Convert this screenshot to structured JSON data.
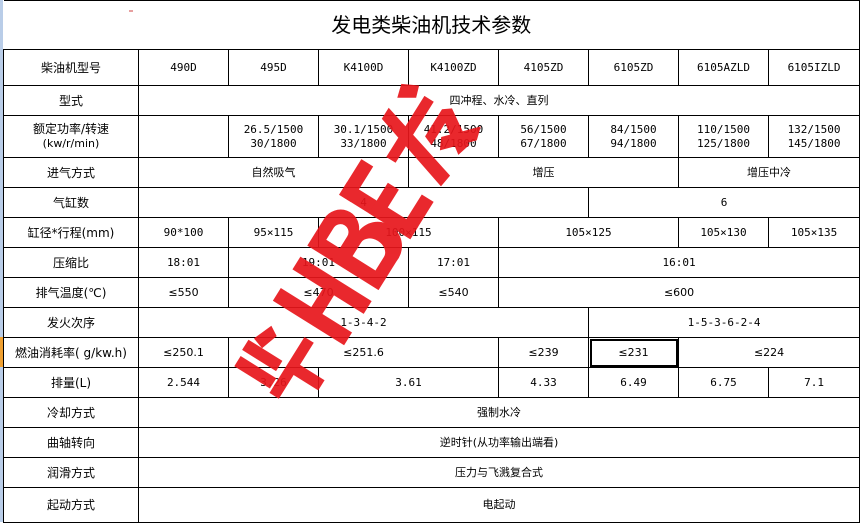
{
  "title": "发电类柴油机技术参数",
  "rows": [
    {
      "label": "柴油机型号",
      "cells": [
        "490D",
        "495D",
        "K4100D",
        "K4100ZD",
        "4105ZD",
        "6105ZD",
        "6105AZLD",
        "6105IZLD"
      ]
    },
    {
      "label": "型式",
      "cells": [
        "四冲程、水冷、直列"
      ]
    },
    {
      "label": [
        "额定功率/转速",
        "(kw/r/min)"
      ],
      "cells": [
        [
          "",
          ""
        ],
        [
          "26.5/1500",
          "30/1800"
        ],
        [
          "30.1/1500",
          "33/1800"
        ],
        [
          "41.2/1500",
          "48/1800"
        ],
        [
          "56/1500",
          "67/1800"
        ],
        [
          "84/1500",
          "94/1800"
        ],
        [
          "110/1500",
          "125/1800"
        ],
        [
          "132/1500",
          "145/1800"
        ]
      ]
    },
    {
      "label": "进气方式",
      "cells": [
        "自然吸气",
        "增压",
        "增压中冷"
      ]
    },
    {
      "label": "气缸数",
      "cells": [
        "4",
        "6"
      ]
    },
    {
      "label": "缸径*行程(mm)",
      "cells": [
        "90*100",
        "95×115",
        "100×115",
        "105×125",
        "105×130",
        "105×135"
      ]
    },
    {
      "label": "压缩比",
      "cells": [
        "18:01",
        "19:01",
        "17:01",
        "16:01"
      ]
    },
    {
      "label": "排气温度(℃)",
      "cells": [
        "≤550",
        "≤470",
        "≤540",
        "≤600"
      ]
    },
    {
      "label": "发火次序",
      "cells": [
        "1-3-4-2",
        "1-5-3-6-2-4"
      ]
    },
    {
      "label": "燃油消耗率( g/kw.h)",
      "cells": [
        "≤250.1",
        "≤251.6",
        "≤239",
        "≤231",
        "≤224"
      ]
    },
    {
      "label": "排量(L)",
      "cells": [
        "2.544",
        "3.26",
        "3.61",
        "4.33",
        "6.49",
        "6.75",
        "7.1"
      ]
    },
    {
      "label": "冷却方式",
      "cells": [
        "强制水冷"
      ]
    },
    {
      "label": "曲轴转向",
      "cells": [
        "逆时针(从功率输出端看)"
      ]
    },
    {
      "label": "润滑方式",
      "cells": [
        "压力与飞溅复合式"
      ]
    },
    {
      "label": "起动方式",
      "cells": [
        "电起动"
      ]
    }
  ],
  "selected_cell": "≤231",
  "watermark": {
    "text": "华HBE发",
    "color": "#e8161c"
  }
}
